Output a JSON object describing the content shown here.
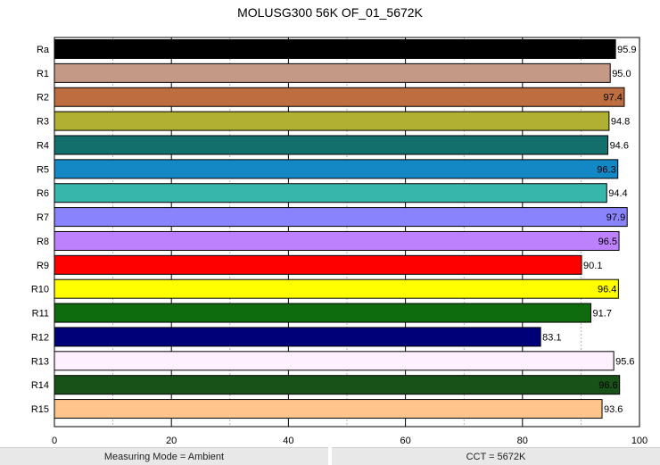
{
  "chart_data": {
    "type": "bar",
    "orientation": "horizontal",
    "title": "MOLUSG300 56K OF_01_5672K",
    "xlabel": "",
    "ylabel": "",
    "xlim": [
      0,
      100
    ],
    "xticks": [
      0,
      20,
      40,
      60,
      80,
      100
    ],
    "grid": "vertical, solid at 20s, dashed at 10s",
    "categories": [
      "Ra",
      "R1",
      "R2",
      "R3",
      "R4",
      "R5",
      "R6",
      "R7",
      "R8",
      "R9",
      "R10",
      "R11",
      "R12",
      "R13",
      "R14",
      "R15"
    ],
    "values": [
      95.9,
      95.0,
      97.4,
      94.8,
      94.6,
      96.3,
      94.4,
      97.9,
      96.5,
      90.1,
      96.4,
      91.7,
      83.1,
      95.6,
      96.6,
      93.6
    ],
    "colors": [
      "#000000",
      "#c49a86",
      "#bd6d40",
      "#b2b032",
      "#136f6b",
      "#1487c5",
      "#37b7ab",
      "#8a83fe",
      "#be81fe",
      "#ff0000",
      "#ffff00",
      "#0e6b0e",
      "#000078",
      "#fff0fe",
      "#195219",
      "#ffc38c"
    ]
  },
  "footer": {
    "measuring_mode": "Measuring Mode = Ambient",
    "cct": "CCT = 5672K"
  }
}
